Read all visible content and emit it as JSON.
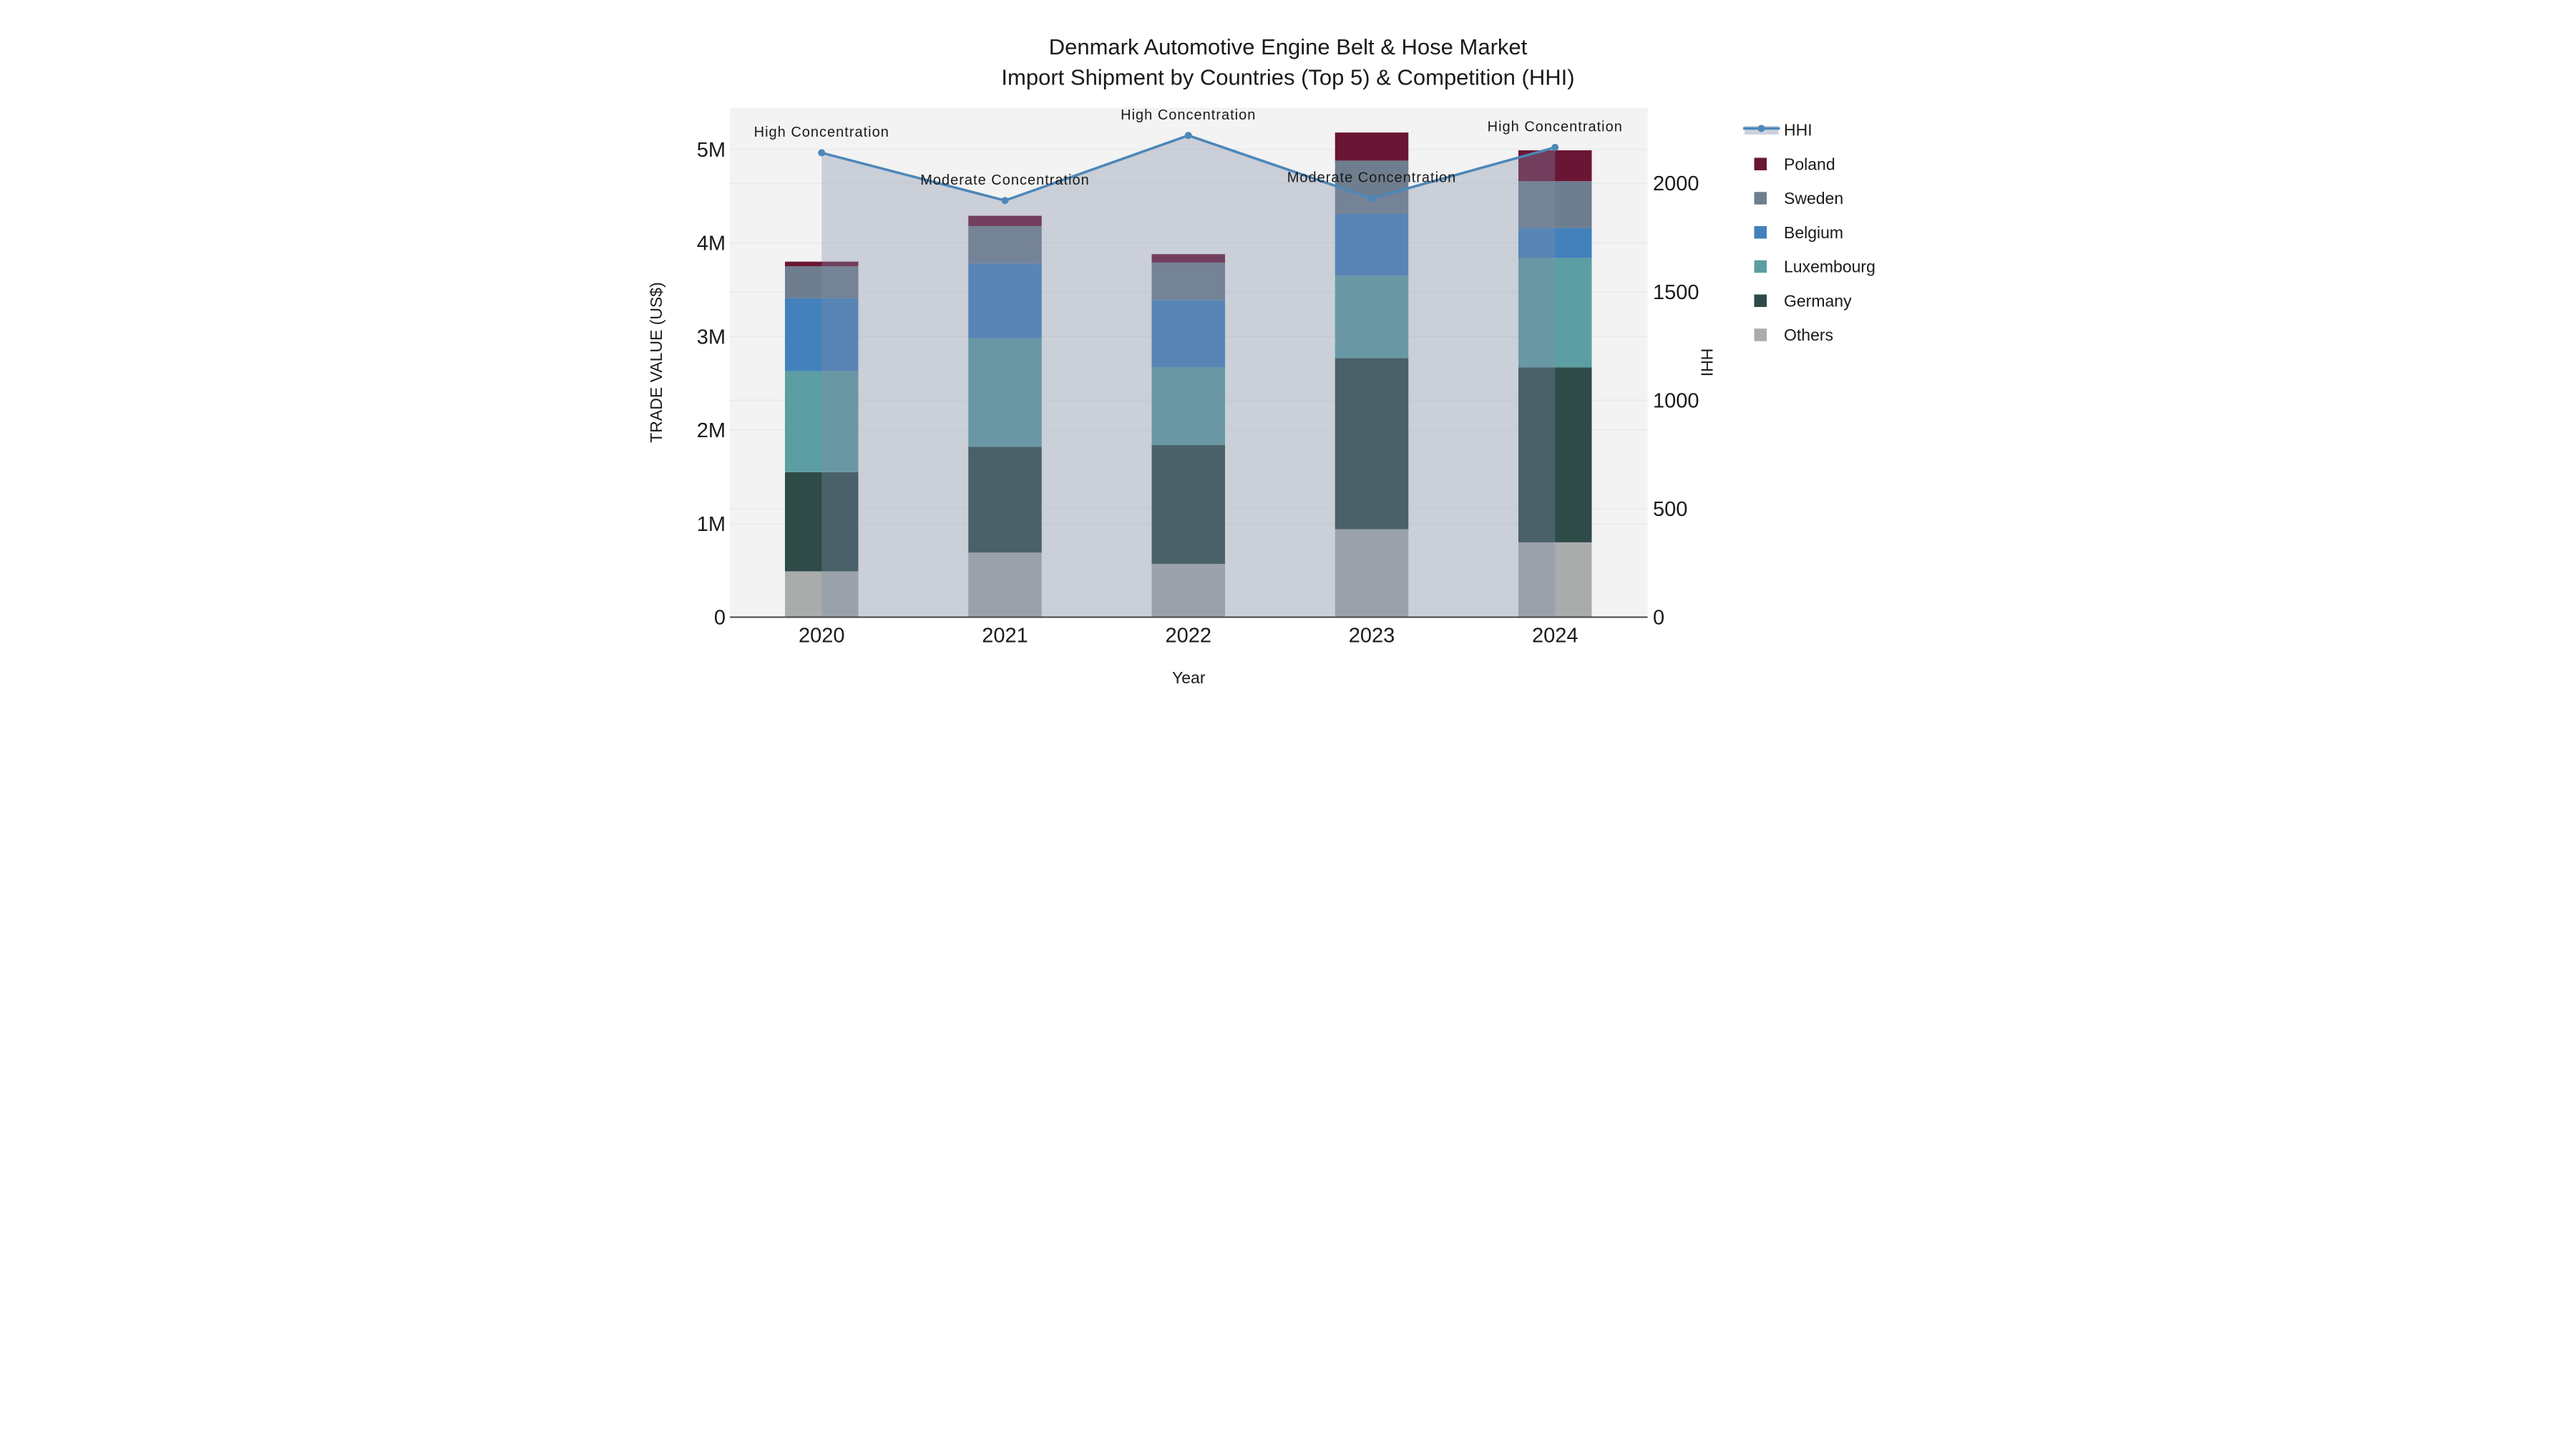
{
  "title": {
    "line1": "Denmark Automotive Engine Belt & Hose Market",
    "line2": "Import Shipment by Countries (Top 5) & Competition (HHI)"
  },
  "axes": {
    "y_left": {
      "title": "TRADE VALUE (US$)",
      "ticks": [
        {
          "label": "0",
          "value": 0
        },
        {
          "label": "1M",
          "value": 1
        },
        {
          "label": "2M",
          "value": 2
        },
        {
          "label": "3M",
          "value": 3
        },
        {
          "label": "4M",
          "value": 4
        },
        {
          "label": "5M",
          "value": 5
        }
      ]
    },
    "y_right": {
      "title": "HHI",
      "ticks": [
        {
          "label": "0",
          "value": 0
        },
        {
          "label": "500",
          "value": 500
        },
        {
          "label": "1000",
          "value": 1000
        },
        {
          "label": "1500",
          "value": 1500
        },
        {
          "label": "2000",
          "value": 2000
        }
      ]
    },
    "x": {
      "title": "Year",
      "categories": [
        "2020",
        "2021",
        "2022",
        "2023",
        "2024"
      ]
    }
  },
  "legend": {
    "items": [
      {
        "label": "HHI",
        "type": "line"
      },
      {
        "label": "Poland",
        "type": "swatch"
      },
      {
        "label": "Sweden",
        "type": "swatch"
      },
      {
        "label": "Belgium",
        "type": "swatch"
      },
      {
        "label": "Luxembourg",
        "type": "swatch"
      },
      {
        "label": "Germany",
        "type": "swatch"
      },
      {
        "label": "Others",
        "type": "swatch"
      }
    ]
  },
  "annotations": [
    {
      "year": "2020",
      "text": "High Concentration"
    },
    {
      "year": "2021",
      "text": "Moderate Concentration"
    },
    {
      "year": "2022",
      "text": "High Concentration"
    },
    {
      "year": "2023",
      "text": "Moderate Concentration"
    },
    {
      "year": "2024",
      "text": "High Concentration"
    }
  ],
  "chart_data": {
    "type": "bar+line",
    "title": "Denmark Automotive Engine Belt & Hose Market — Import Shipment by Countries (Top 5) & Competition (HHI)",
    "categories": [
      "2020",
      "2021",
      "2022",
      "2023",
      "2024"
    ],
    "stack_order_bottom_to_top": [
      "Others",
      "Germany",
      "Luxembourg",
      "Belgium",
      "Sweden",
      "Poland"
    ],
    "unit": "US$ millions",
    "series": [
      {
        "name": "Poland",
        "values": [
          0.05,
          0.11,
          0.09,
          0.3,
          0.33
        ]
      },
      {
        "name": "Sweden",
        "values": [
          0.34,
          0.4,
          0.4,
          0.57,
          0.5
        ]
      },
      {
        "name": "Belgium",
        "values": [
          0.78,
          0.8,
          0.72,
          0.66,
          0.32
        ]
      },
      {
        "name": "Luxembourg",
        "values": [
          1.08,
          1.16,
          0.83,
          0.88,
          1.17
        ]
      },
      {
        "name": "Germany",
        "values": [
          1.06,
          1.13,
          1.27,
          1.83,
          1.87
        ]
      },
      {
        "name": "Others",
        "values": [
          0.49,
          0.69,
          0.57,
          0.94,
          0.8
        ]
      }
    ],
    "bar_totals": [
      3.8,
      4.29,
      3.88,
      5.18,
      4.99
    ],
    "line_series": {
      "name": "HHI",
      "axis": "right",
      "values": [
        2140,
        1920,
        2220,
        1930,
        2165
      ]
    },
    "xlabel": "Year",
    "ylabel_left": "TRADE VALUE (US$)",
    "ylabel_right": "HHI",
    "ylim_left": [
      0,
      5.45
    ],
    "ylim_right": [
      0,
      2350
    ],
    "grid": true,
    "legend_position": "right"
  },
  "colors": {
    "hhi_line": "#4c87b9",
    "area_fill": "rgba(128,140,168,0.35)",
    "legend_area_swatch": "#ccd1db",
    "plot_bg": "#f2f3f2",
    "gridline": "#e4e6e6",
    "axis_line": "#444444",
    "text": "#1a1a1a",
    "series": {
      "Poland": "#6b1535",
      "Sweden": "#6f7e8e",
      "Belgium": "#4381bc",
      "Luxembourg": "#5c9ea1",
      "Germany": "#2e4b48",
      "Others": "#a9acab"
    }
  }
}
